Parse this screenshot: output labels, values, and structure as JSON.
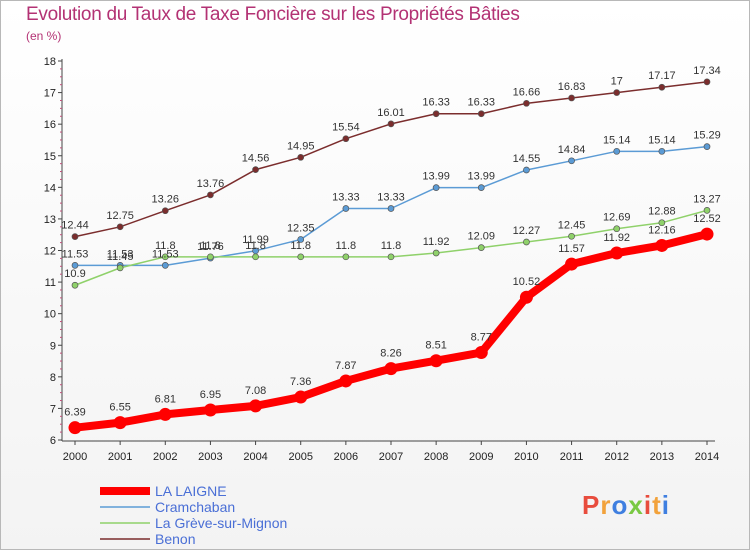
{
  "title": "Evolution du Taux de Taxe Foncière sur les Propriétés Bâties",
  "subtitle": "(en %)",
  "logo": {
    "text": "Proxiti",
    "colors": [
      "#e84c3d",
      "#f2a23b",
      "#3f7fe0",
      "#7ac943",
      "#e84c3d",
      "#f2a23b",
      "#3f7fe0"
    ]
  },
  "chart_data": {
    "type": "line",
    "x": [
      2000,
      2001,
      2002,
      2003,
      2004,
      2005,
      2006,
      2007,
      2008,
      2009,
      2010,
      2011,
      2012,
      2013,
      2014
    ],
    "ylim": [
      6,
      18
    ],
    "yticks": [
      6,
      7,
      8,
      9,
      10,
      11,
      12,
      13,
      14,
      15,
      16,
      17,
      18
    ],
    "grid": false,
    "legend_position": "bottom-left",
    "series": [
      {
        "name": "LA LAIGNE",
        "color": "#ff0000",
        "values": [
          6.39,
          6.55,
          6.81,
          6.95,
          7.08,
          7.36,
          7.87,
          8.26,
          8.51,
          8.77,
          10.52,
          11.57,
          11.92,
          12.16,
          12.52
        ],
        "labels": [
          "6.39",
          "6.55",
          "6.81",
          "6.95",
          "7.08",
          "7.36",
          "7.87",
          "8.26",
          "8.51",
          "8.77",
          "10.52",
          "11.57",
          "11.92",
          "12.16",
          "12.52"
        ]
      },
      {
        "name": "Cramchaban",
        "color": "#5b9bd5",
        "values": [
          11.53,
          11.53,
          11.53,
          11.76,
          11.99,
          12.35,
          13.33,
          13.33,
          13.99,
          13.99,
          14.55,
          14.84,
          15.14,
          15.14,
          15.29
        ],
        "labels": [
          "11.53",
          "11.53",
          "11.53",
          "11.76",
          "11.99",
          "12.35",
          "13.33",
          "13.33",
          "13.99",
          "13.99",
          "14.55",
          "14.84",
          "15.14",
          "15.14",
          "15.29"
        ]
      },
      {
        "name": "La Grève-sur-Mignon",
        "color": "#8fd16a",
        "values": [
          10.9,
          11.45,
          11.8,
          11.8,
          11.8,
          11.8,
          11.8,
          11.8,
          11.92,
          12.09,
          12.27,
          12.45,
          12.69,
          12.88,
          13.27
        ],
        "labels": [
          "10.9",
          "11.45",
          "11.8",
          "11.8",
          "11.8",
          "11.8",
          "11.8",
          "11.8",
          "11.92",
          "12.09",
          "12.27",
          "12.45",
          "12.69",
          "12.88",
          "13.27"
        ]
      },
      {
        "name": "Benon",
        "color": "#7b2d2d",
        "values": [
          12.44,
          12.75,
          13.26,
          13.76,
          14.56,
          14.95,
          15.54,
          16.01,
          16.33,
          16.33,
          16.66,
          16.83,
          17,
          17.17,
          17.34
        ],
        "labels": [
          "12.44",
          "12.75",
          "13.26",
          "13.76",
          "14.56",
          "14.95",
          "15.54",
          "16.01",
          "16.33",
          "16.33",
          "16.66",
          "16.83",
          "17",
          "17.17",
          "17.34"
        ]
      }
    ]
  }
}
